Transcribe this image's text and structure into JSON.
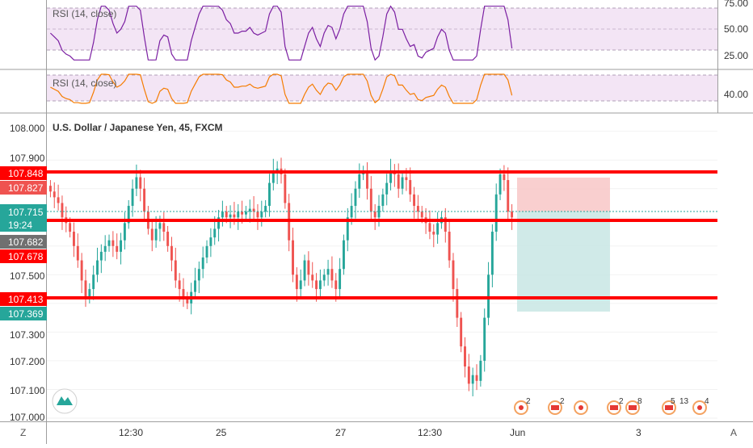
{
  "symbol_title": "U.S. Dollar / Japanese Yen, 45, FXCM",
  "colors": {
    "up": "#26a69a",
    "down": "#ef5350",
    "level_line": "#ff0000",
    "rsi1_line": "#7b1fa2",
    "rsi2_line": "#f57c00",
    "rsi_band": "#f3e5f5",
    "stop_zone": "#f8c7c7",
    "target_zone": "#c8e6e4",
    "current_price": "#26a69a",
    "last_price": "#707070"
  },
  "rsi_panels": [
    {
      "label": "RSI (14, close)",
      "axis_ticks": [
        "75.00",
        "50.00",
        "25.00"
      ]
    },
    {
      "label": "RSI (14, close)",
      "axis_ticks": [
        "40.00"
      ]
    }
  ],
  "price_axis_ticks": [
    "108.000",
    "107.900",
    "107.500",
    "107.400",
    "107.300",
    "107.200",
    "107.100",
    "107.000"
  ],
  "price_badges": {
    "level_top": "107.848",
    "level_mid": "107.678",
    "level_bottom": "107.413",
    "stop": "107.827",
    "current": "107.715",
    "countdown": "19:24",
    "last": "107.682",
    "target": "107.369"
  },
  "time_axis_ticks": [
    "12:30",
    "25",
    "27",
    "12:30",
    "Jun",
    "3"
  ],
  "corner_labels": {
    "left": "Z",
    "right": "A"
  },
  "event_badges": [
    "2",
    "2",
    "2",
    "8",
    "5",
    "13",
    "4"
  ],
  "chart_data": {
    "type": "candlestick",
    "title": "U.S. Dollar / Japanese Yen, 45, FXCM",
    "ylim": [
      107.0,
      108.03
    ],
    "support_resistance_levels": [
      107.848,
      107.678,
      107.413
    ],
    "position": {
      "type": "short",
      "stop": 107.827,
      "entry": 107.715,
      "target": 107.369
    },
    "close_series": [
      107.79,
      107.77,
      107.75,
      107.7,
      107.68,
      107.65,
      107.6,
      107.55,
      107.48,
      107.42,
      107.45,
      107.5,
      107.55,
      107.58,
      107.6,
      107.62,
      107.6,
      107.58,
      107.62,
      107.68,
      107.74,
      107.8,
      107.84,
      107.8,
      107.72,
      107.66,
      107.62,
      107.66,
      107.68,
      107.65,
      107.6,
      107.55,
      107.48,
      107.45,
      107.42,
      107.4,
      107.44,
      107.48,
      107.52,
      107.56,
      107.6,
      107.63,
      107.66,
      107.7,
      107.72,
      107.7,
      107.71,
      107.7,
      107.72,
      107.71,
      107.72,
      107.73,
      107.72,
      107.7,
      107.72,
      107.74,
      107.82,
      107.86,
      107.87,
      107.85,
      107.75,
      107.62,
      107.5,
      107.45,
      107.48,
      107.55,
      107.5,
      107.48,
      107.45,
      107.48,
      107.5,
      107.52,
      107.48,
      107.45,
      107.52,
      107.62,
      107.7,
      107.74,
      107.8,
      107.85,
      107.86,
      107.8,
      107.72,
      107.7,
      107.74,
      107.78,
      107.82,
      107.86,
      107.85,
      107.8,
      107.84,
      107.83,
      107.78,
      107.74,
      107.72,
      107.7,
      107.68,
      107.65,
      107.64,
      107.68,
      107.7,
      107.65,
      107.55,
      107.45,
      107.35,
      107.25,
      107.18,
      107.12,
      107.15,
      107.13,
      107.2,
      107.35,
      107.5,
      107.65,
      107.78,
      107.85,
      107.83,
      107.72,
      107.7
    ]
  }
}
